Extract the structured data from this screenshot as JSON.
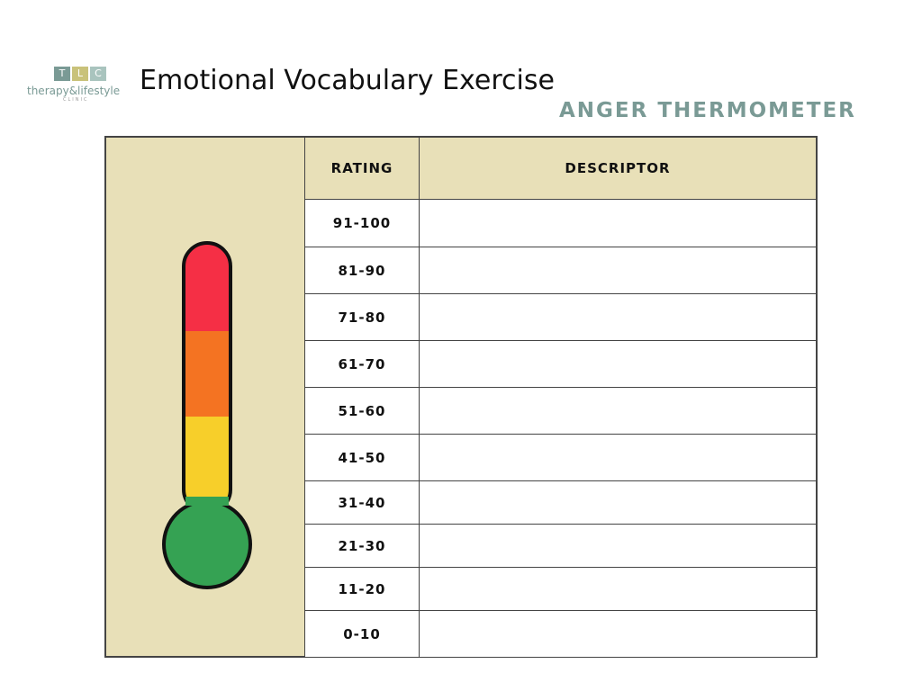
{
  "logo": {
    "letters": [
      "T",
      "L",
      "C"
    ],
    "name": "therapy&lifestyle",
    "tagline": "CLINIC"
  },
  "header": {
    "title": "Emotional Vocabulary Exercise",
    "subtitle": "ANGER THERMOMETER"
  },
  "table": {
    "columns": [
      "RATING",
      "DESCRIPTOR"
    ],
    "rows": [
      "91-100",
      "81-90",
      "71-80",
      "61-70",
      "51-60",
      "41-50",
      "31-40",
      "21-30",
      "11-20",
      "0-10"
    ]
  }
}
